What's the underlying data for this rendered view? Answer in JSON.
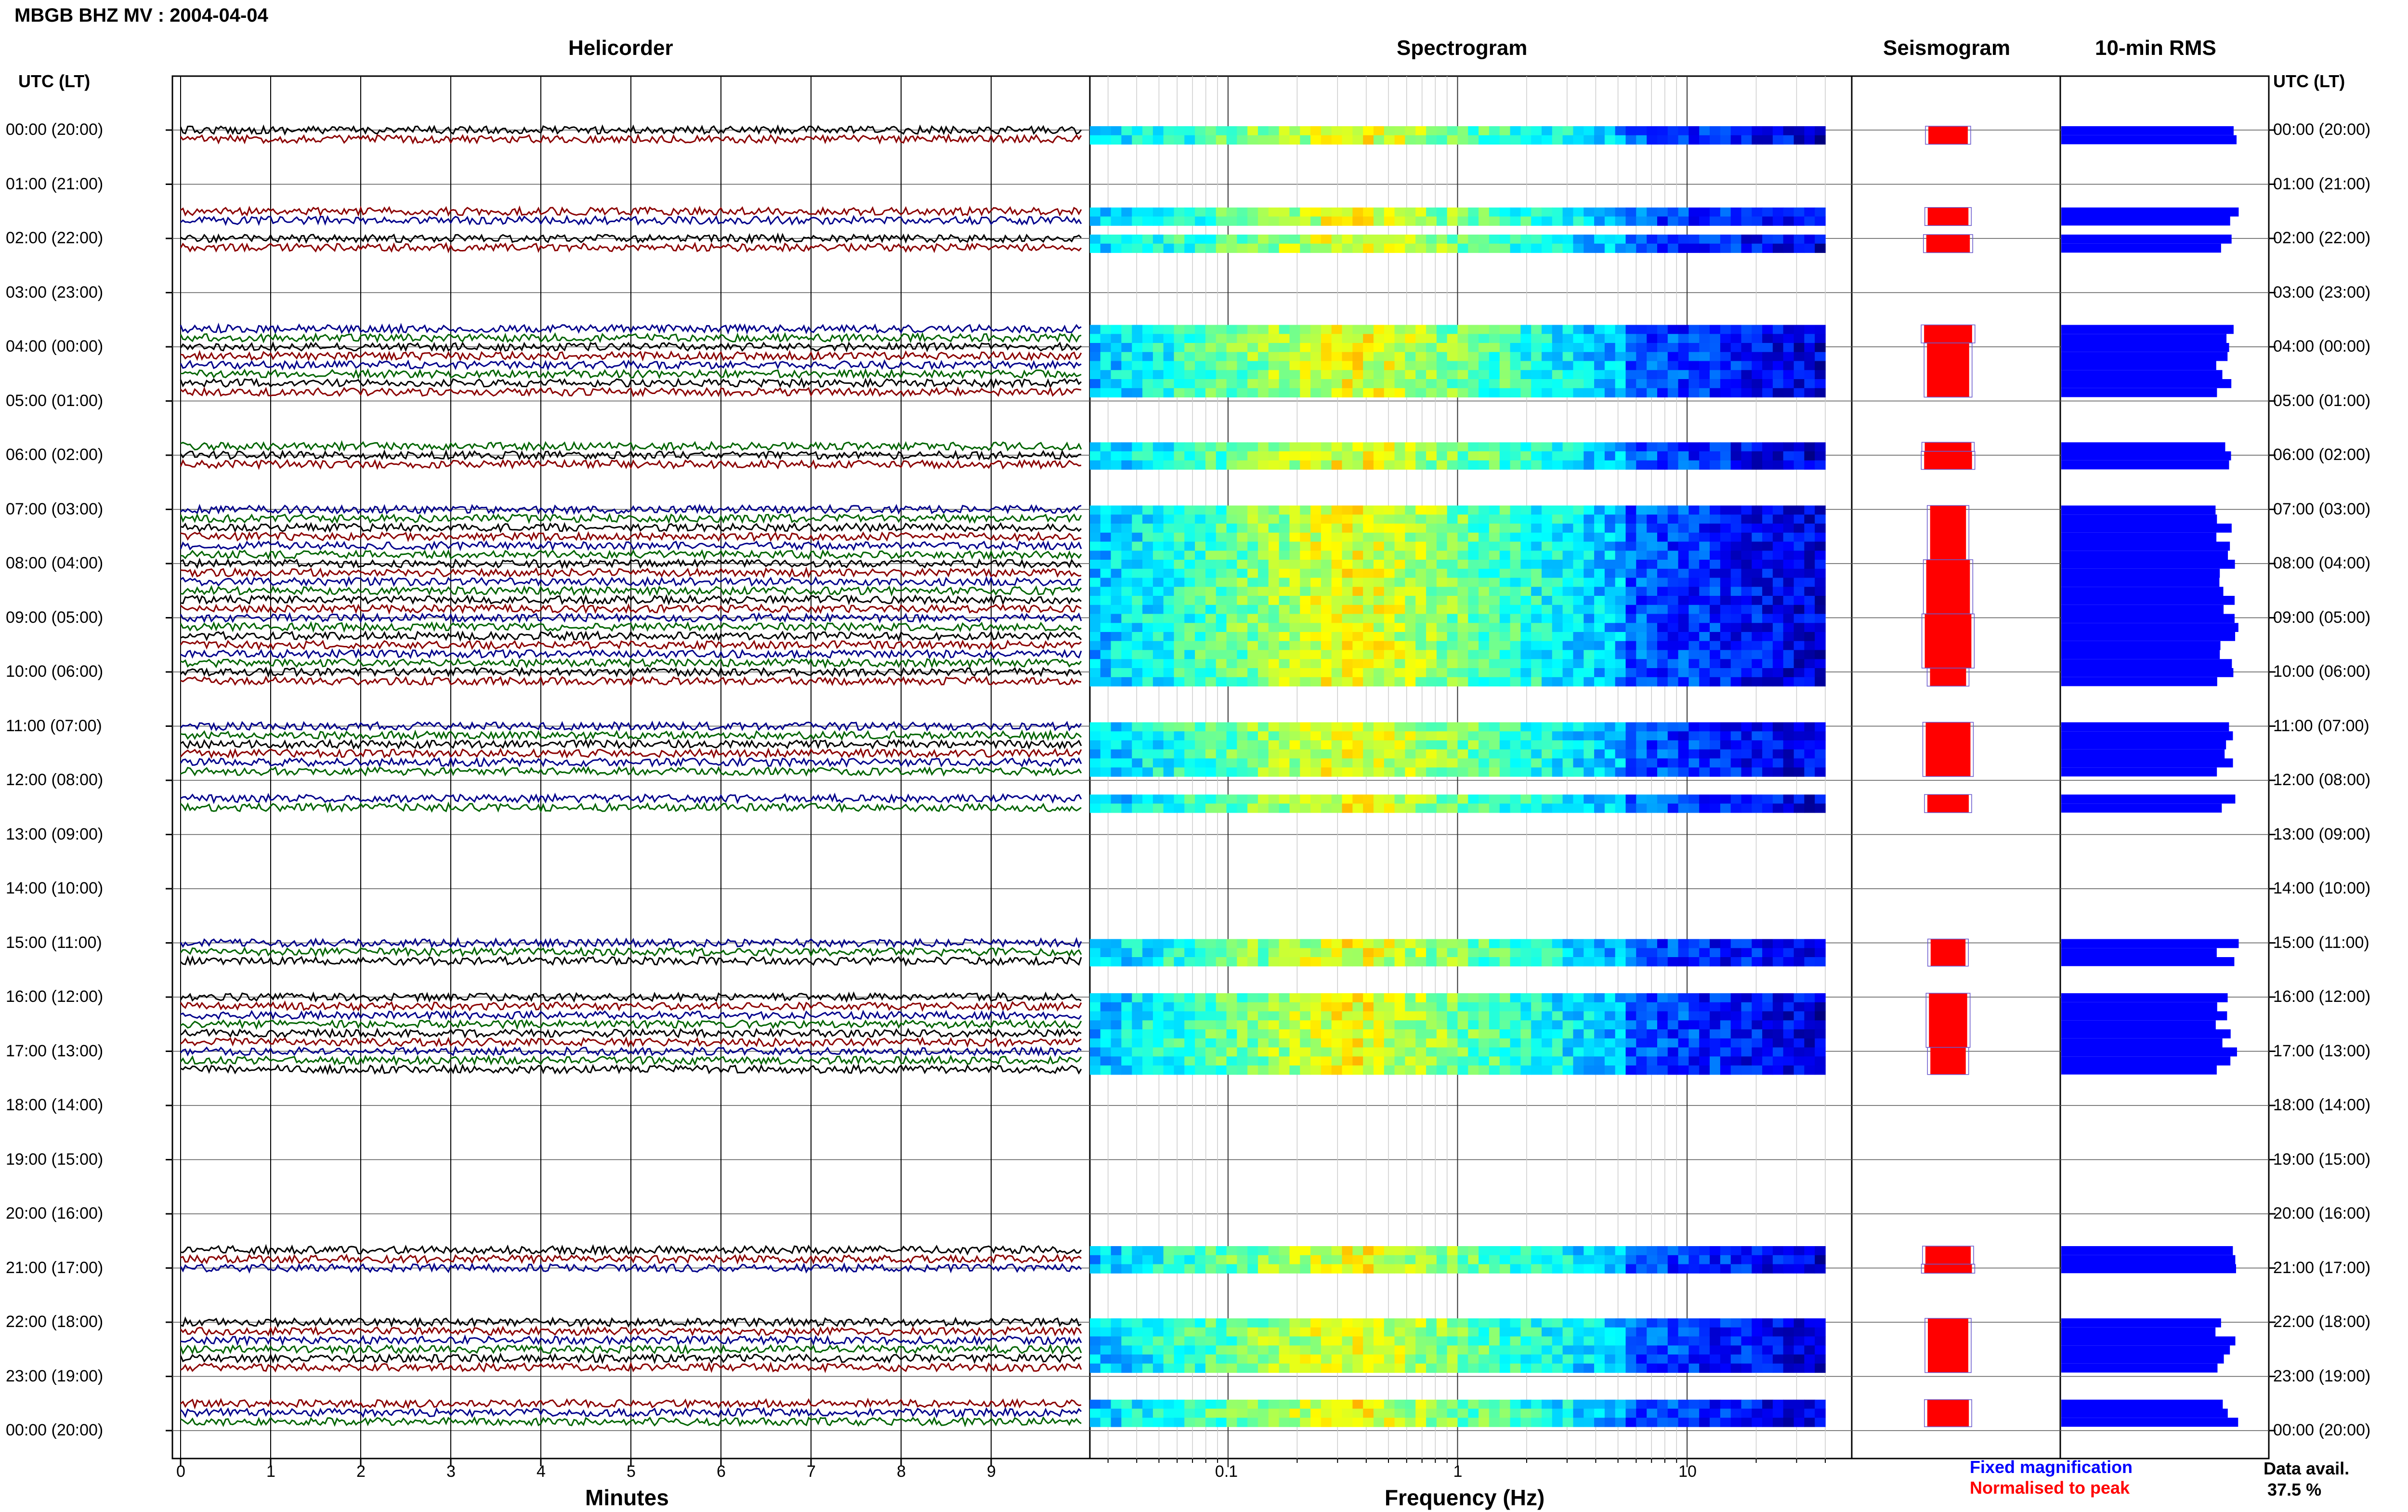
{
  "title": "MBGB BHZ MV : 2004-04-04",
  "panels": {
    "helicorder": "Helicorder",
    "spectrogram": "Spectrogram",
    "seismogram": "Seismogram",
    "rms": "10-min RMS"
  },
  "axis": {
    "left_header": "UTC (LT)",
    "right_header": "UTC (LT)",
    "minutes_label": "Minutes",
    "frequency_label": "Frequency (Hz)"
  },
  "legend": {
    "fixed": "Fixed magnification",
    "normalised": "Normalised to peak",
    "fixed_color": "#0000ff",
    "normalised_color": "#ff0000"
  },
  "availability": {
    "label": "Data avail.",
    "value": "37.5 %"
  },
  "colors": {
    "trace_colors": [
      "#000000",
      "#8b0000",
      "#00008b",
      "#006400"
    ],
    "rms_bar": "#0000ff",
    "seismo_fill": "#ff0000"
  },
  "chart_data": {
    "type": "heatmap",
    "hour_labels": [
      "00:00 (20:00)",
      "01:00 (21:00)",
      "02:00 (22:00)",
      "03:00 (23:00)",
      "04:00 (00:00)",
      "05:00 (01:00)",
      "06:00 (02:00)",
      "07:00 (03:00)",
      "08:00 (04:00)",
      "09:00 (05:00)",
      "10:00 (06:00)",
      "11:00 (07:00)",
      "12:00 (08:00)",
      "13:00 (09:00)",
      "14:00 (10:00)",
      "15:00 (11:00)",
      "16:00 (12:00)",
      "17:00 (13:00)",
      "18:00 (14:00)",
      "19:00 (15:00)",
      "20:00 (16:00)",
      "21:00 (17:00)",
      "22:00 (18:00)",
      "23:00 (19:00)",
      "00:00 (20:00)"
    ],
    "minute_ticks": [
      "0",
      "1",
      "2",
      "3",
      "4",
      "5",
      "6",
      "7",
      "8",
      "9"
    ],
    "minute_range": [
      0,
      10
    ],
    "frequency_ticks": [
      "0.1",
      "1",
      "10"
    ],
    "frequency_range": [
      0.025,
      40
    ],
    "frequency_scale": "log",
    "data_hours": [
      {
        "hour": 0,
        "segments": [
          0,
          1
        ]
      },
      {
        "hour": 1,
        "segments": [
          3,
          4
        ]
      },
      {
        "hour": 2,
        "segments": [
          0,
          1
        ]
      },
      {
        "hour": 3,
        "segments": [
          4,
          5
        ]
      },
      {
        "hour": 4,
        "segments": [
          0,
          1,
          2,
          3,
          4,
          5
        ]
      },
      {
        "hour": 5,
        "segments": [
          5
        ]
      },
      {
        "hour": 6,
        "segments": [
          0,
          1
        ]
      },
      {
        "hour": 7,
        "segments": [
          0,
          1,
          2,
          3,
          4,
          5
        ]
      },
      {
        "hour": 8,
        "segments": [
          0,
          1,
          2,
          3,
          4,
          5
        ]
      },
      {
        "hour": 9,
        "segments": [
          0,
          1,
          2,
          3,
          4,
          5
        ]
      },
      {
        "hour": 10,
        "segments": [
          0,
          1
        ]
      },
      {
        "hour": 11,
        "segments": [
          0,
          1,
          2,
          3,
          4,
          5
        ]
      },
      {
        "hour": 12,
        "segments": [
          2,
          3
        ]
      },
      {
        "hour": 15,
        "segments": [
          0,
          1,
          2
        ]
      },
      {
        "hour": 16,
        "segments": [
          0,
          1,
          2,
          3,
          4,
          5
        ]
      },
      {
        "hour": 17,
        "segments": [
          0,
          1,
          2
        ]
      },
      {
        "hour": 20,
        "segments": [
          4,
          5
        ]
      },
      {
        "hour": 21,
        "segments": [
          0
        ]
      },
      {
        "hour": 22,
        "segments": [
          0,
          1,
          2,
          3,
          4,
          5
        ]
      },
      {
        "hour": 23,
        "segments": [
          3,
          4,
          5
        ]
      }
    ],
    "data_availability_percent": 37.5
  }
}
